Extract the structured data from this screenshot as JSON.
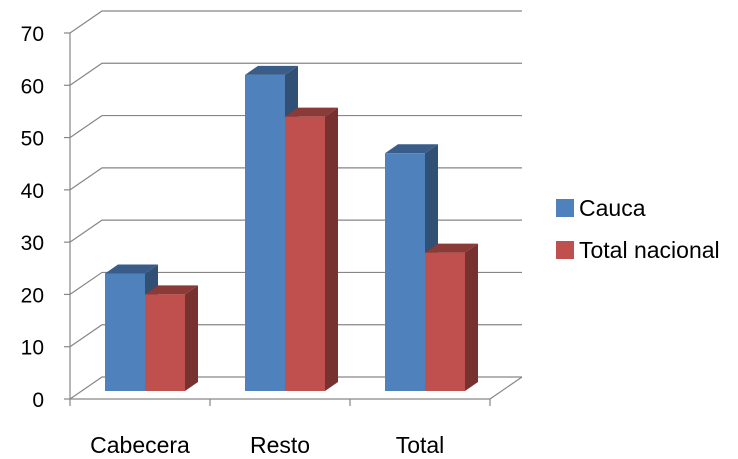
{
  "chart_data": {
    "type": "bar",
    "categories": [
      "Cabecera",
      "Resto",
      "Total"
    ],
    "series": [
      {
        "name": "Cauca",
        "values": [
          24,
          62,
          47
        ],
        "color": "#4F81BD"
      },
      {
        "name": "Total nacional",
        "values": [
          20,
          54,
          28
        ],
        "color": "#C0504D"
      }
    ],
    "ylim": [
      0,
      70
    ],
    "yticks": [
      0,
      10,
      20,
      30,
      40,
      50,
      60,
      70
    ],
    "grid": true,
    "legend": "right",
    "style": "3d-clustered-column"
  }
}
